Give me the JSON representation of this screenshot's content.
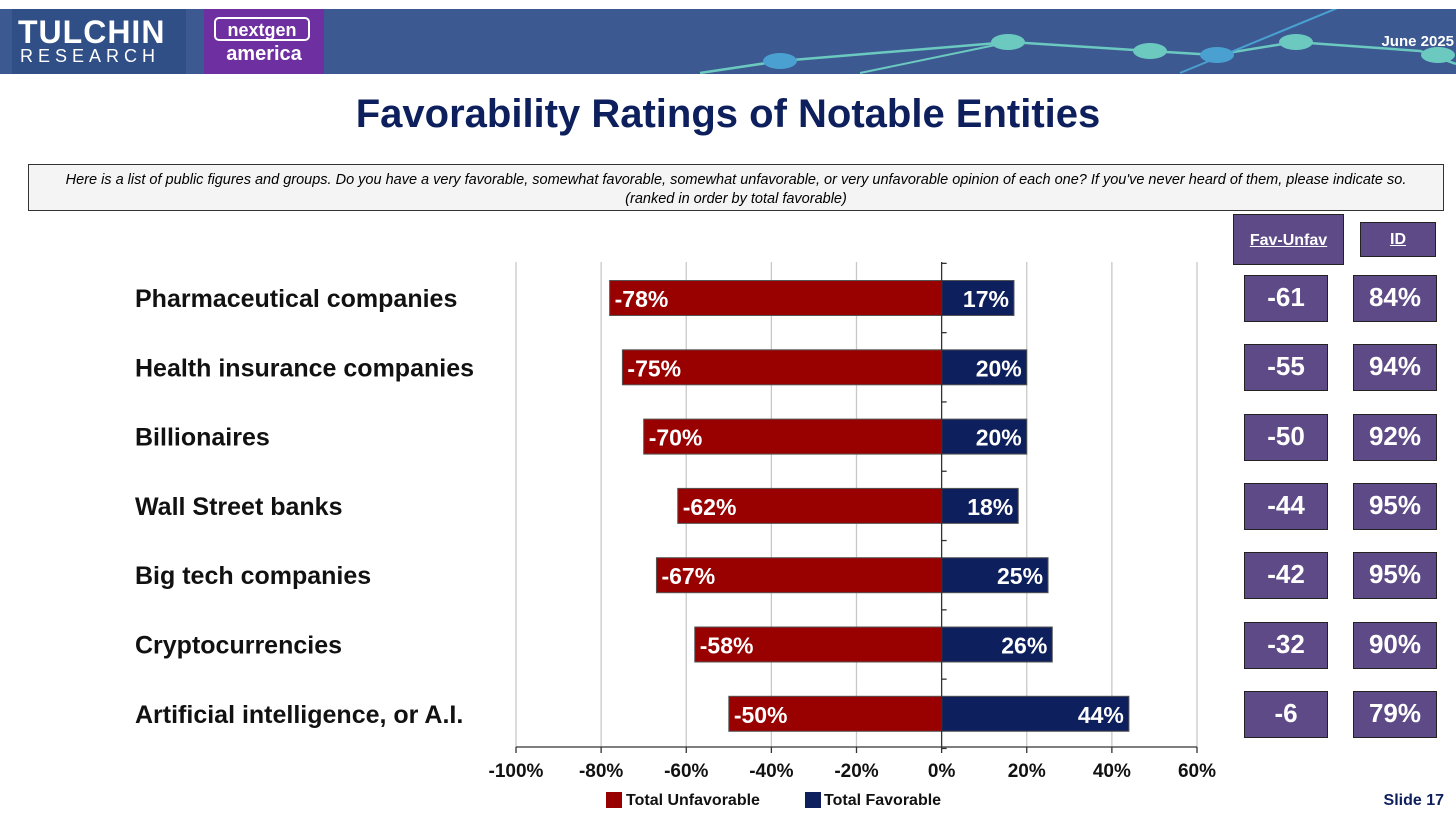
{
  "header": {
    "logo_primary": "TULCHIN",
    "logo_secondary": "RESEARCH",
    "partner_top": "nextgen",
    "partner_bottom": "america",
    "date": "June 2025"
  },
  "title": "Favorability Ratings of Notable Entities",
  "question": "Here is a list of public figures and groups. Do you have a very favorable, somewhat favorable, somewhat unfavorable, or very unfavorable opinion of each one? If you've never heard of them, please indicate so. (ranked in order by total favorable)",
  "side_table": {
    "headers": {
      "net": "Fav-Unfav",
      "id": "ID"
    },
    "net": [
      "-61",
      "-55",
      "-50",
      "-44",
      "-42",
      "-32",
      "-6"
    ],
    "id": [
      "84%",
      "94%",
      "92%",
      "95%",
      "95%",
      "90%",
      "79%"
    ]
  },
  "colors": {
    "unfavorable": "#990000",
    "favorable": "#0d1f5c",
    "header_bg": "#3c5a91",
    "table_bg": "#5d4a86",
    "title": "#0d1f5c"
  },
  "chart_data": {
    "type": "bar",
    "orientation": "horizontal",
    "stacked": "diverging",
    "categories": [
      "Pharmaceutical companies",
      "Health insurance companies",
      "Billionaires",
      "Wall Street banks",
      "Big tech companies",
      "Cryptocurrencies",
      "Artificial intelligence, or A.I."
    ],
    "series": [
      {
        "name": "Total Unfavorable",
        "values": [
          -78,
          -75,
          -70,
          -62,
          -67,
          -58,
          -50
        ],
        "labels": [
          "-78%",
          "-75%",
          "-70%",
          "-62%",
          "-67%",
          "-58%",
          "-50%"
        ]
      },
      {
        "name": "Total Favorable",
        "values": [
          17,
          20,
          20,
          18,
          25,
          26,
          44
        ],
        "labels": [
          "17%",
          "20%",
          "20%",
          "18%",
          "25%",
          "26%",
          "44%"
        ]
      }
    ],
    "xlim": [
      -100,
      60
    ],
    "xticks": [
      -100,
      -80,
      -60,
      -40,
      -20,
      0,
      20,
      40,
      60
    ],
    "xtick_labels": [
      "-100%",
      "-80%",
      "-60%",
      "-40%",
      "-20%",
      "0%",
      "20%",
      "40%",
      "60%"
    ],
    "grid": true,
    "legend": "bottom"
  },
  "slide_label": "Slide 17"
}
